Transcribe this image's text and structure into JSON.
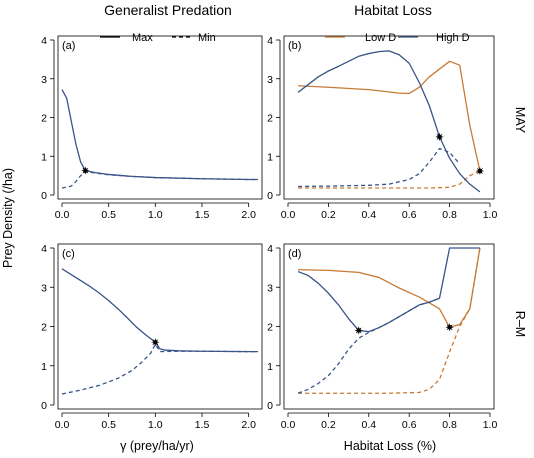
{
  "figure": {
    "column_titles": [
      "Generalist Predation",
      "Habitat Loss"
    ],
    "row_labels": [
      "MAY",
      "R–M"
    ],
    "y_axis_title": "Prey Density (/ha)",
    "x_axis_titles": [
      "γ (prey/ha/yr)",
      "Habitat Loss (%)"
    ]
  },
  "colors": {
    "dark_blue": "#3a5488",
    "orange": "#c87a35",
    "star": "#000000"
  },
  "chart_data": [
    {
      "type": "line",
      "panel": "(a)",
      "xlim": [
        0,
        2.1
      ],
      "ylim": [
        0,
        4
      ],
      "x_ticks": [
        0.0,
        0.5,
        1.0,
        1.5,
        2.0
      ],
      "x_tick_labels": [
        "0.0",
        "0.5",
        "1.0",
        "1.5",
        "2.0"
      ],
      "y_ticks": [
        0,
        1,
        2,
        3,
        4
      ],
      "y_tick_labels": [
        "0",
        "1",
        "2",
        "3",
        "4"
      ],
      "legend": {
        "position": "top-right",
        "entries": [
          {
            "label": "Max",
            "style": "solid"
          },
          {
            "label": "Min",
            "style": "dashed"
          }
        ]
      },
      "series": [
        {
          "style": "solid",
          "color": "#3a5488",
          "points": [
            [
              0,
              2.72
            ],
            [
              0.05,
              2.5
            ],
            [
              0.1,
              1.9
            ],
            [
              0.15,
              1.3
            ],
            [
              0.2,
              0.85
            ],
            [
              0.25,
              0.63
            ],
            [
              0.35,
              0.58
            ],
            [
              0.5,
              0.53
            ],
            [
              0.75,
              0.48
            ],
            [
              1.0,
              0.45
            ],
            [
              1.5,
              0.42
            ],
            [
              2.0,
              0.4
            ],
            [
              2.1,
              0.4
            ]
          ]
        },
        {
          "style": "dashed",
          "color": "#3a5488",
          "points": [
            [
              0,
              0.18
            ],
            [
              0.1,
              0.23
            ],
            [
              0.15,
              0.35
            ],
            [
              0.2,
              0.5
            ],
            [
              0.25,
              0.6
            ],
            [
              0.35,
              0.57
            ],
            [
              0.5,
              0.52
            ],
            [
              0.75,
              0.48
            ],
            [
              1.0,
              0.45
            ],
            [
              1.5,
              0.42
            ],
            [
              2.0,
              0.4
            ],
            [
              2.1,
              0.4
            ]
          ]
        }
      ],
      "markers": [
        {
          "symbol": "star",
          "x": 0.25,
          "y": 0.63
        }
      ]
    },
    {
      "type": "line",
      "panel": "(b)",
      "xlim": [
        0,
        1
      ],
      "ylim": [
        0,
        4
      ],
      "x_ticks": [
        0.0,
        0.2,
        0.4,
        0.6,
        0.8,
        1.0
      ],
      "x_tick_labels": [
        "0.0",
        "0.2",
        "0.4",
        "0.6",
        "0.8",
        "1.0"
      ],
      "y_ticks": [
        0,
        1,
        2,
        3,
        4
      ],
      "y_tick_labels": [
        "0",
        "1",
        "2",
        "3",
        "4"
      ],
      "legend": {
        "position": "top",
        "entries": [
          {
            "label": "Low D",
            "color": "#c87a35"
          },
          {
            "label": "High D",
            "color": "#3a5488"
          }
        ]
      },
      "series": [
        {
          "name": "Low D",
          "style": "solid",
          "color": "#c87a35",
          "points": [
            [
              0.05,
              2.82
            ],
            [
              0.2,
              2.78
            ],
            [
              0.4,
              2.72
            ],
            [
              0.55,
              2.63
            ],
            [
              0.6,
              2.62
            ],
            [
              0.65,
              2.78
            ],
            [
              0.7,
              3.05
            ],
            [
              0.75,
              3.25
            ],
            [
              0.8,
              3.45
            ],
            [
              0.85,
              3.35
            ],
            [
              0.9,
              1.8
            ],
            [
              0.95,
              0.62
            ]
          ]
        },
        {
          "name": "Low D",
          "style": "dashed",
          "color": "#c87a35",
          "points": [
            [
              0.05,
              0.18
            ],
            [
              0.3,
              0.18
            ],
            [
              0.5,
              0.18
            ],
            [
              0.7,
              0.18
            ],
            [
              0.8,
              0.2
            ],
            [
              0.85,
              0.28
            ],
            [
              0.9,
              0.5
            ],
            [
              0.95,
              0.62
            ]
          ]
        },
        {
          "name": "High D",
          "style": "solid",
          "color": "#3a5488",
          "points": [
            [
              0.05,
              2.65
            ],
            [
              0.1,
              2.85
            ],
            [
              0.15,
              3.05
            ],
            [
              0.2,
              3.2
            ],
            [
              0.25,
              3.32
            ],
            [
              0.3,
              3.45
            ],
            [
              0.35,
              3.58
            ],
            [
              0.4,
              3.65
            ],
            [
              0.45,
              3.7
            ],
            [
              0.5,
              3.72
            ],
            [
              0.55,
              3.62
            ],
            [
              0.6,
              3.4
            ],
            [
              0.65,
              2.9
            ],
            [
              0.7,
              2.3
            ],
            [
              0.75,
              1.5
            ],
            [
              0.8,
              0.95
            ],
            [
              0.85,
              0.55
            ],
            [
              0.9,
              0.28
            ],
            [
              0.95,
              0.08
            ]
          ]
        },
        {
          "name": "High D",
          "style": "dashed",
          "color": "#3a5488",
          "points": [
            [
              0.05,
              0.22
            ],
            [
              0.2,
              0.23
            ],
            [
              0.4,
              0.25
            ],
            [
              0.5,
              0.28
            ],
            [
              0.6,
              0.4
            ],
            [
              0.65,
              0.55
            ],
            [
              0.7,
              0.85
            ],
            [
              0.75,
              1.2
            ],
            [
              0.8,
              1.1
            ],
            [
              0.85,
              0.8
            ]
          ]
        }
      ],
      "markers": [
        {
          "symbol": "star",
          "x": 0.75,
          "y": 1.5
        },
        {
          "symbol": "star",
          "x": 0.95,
          "y": 0.62
        }
      ]
    },
    {
      "type": "line",
      "panel": "(c)",
      "xlim": [
        0,
        2.1
      ],
      "ylim": [
        0,
        4
      ],
      "x_ticks": [
        0.0,
        0.5,
        1.0,
        1.5,
        2.0
      ],
      "x_tick_labels": [
        "0.0",
        "0.5",
        "1.0",
        "1.5",
        "2.0"
      ],
      "y_ticks": [
        0,
        1,
        2,
        3,
        4
      ],
      "y_tick_labels": [
        "0",
        "1",
        "2",
        "3",
        "4"
      ],
      "series": [
        {
          "style": "solid",
          "color": "#3a5488",
          "points": [
            [
              0,
              3.47
            ],
            [
              0.1,
              3.32
            ],
            [
              0.2,
              3.17
            ],
            [
              0.3,
              3.02
            ],
            [
              0.4,
              2.85
            ],
            [
              0.5,
              2.66
            ],
            [
              0.6,
              2.45
            ],
            [
              0.7,
              2.22
            ],
            [
              0.8,
              1.98
            ],
            [
              0.9,
              1.78
            ],
            [
              1.0,
              1.6
            ],
            [
              1.05,
              1.43
            ],
            [
              1.1,
              1.4
            ],
            [
              1.25,
              1.38
            ],
            [
              1.5,
              1.37
            ],
            [
              2.0,
              1.36
            ],
            [
              2.1,
              1.36
            ]
          ]
        },
        {
          "style": "dashed",
          "color": "#3a5488",
          "points": [
            [
              0,
              0.28
            ],
            [
              0.2,
              0.38
            ],
            [
              0.4,
              0.5
            ],
            [
              0.6,
              0.68
            ],
            [
              0.75,
              0.88
            ],
            [
              0.85,
              1.08
            ],
            [
              0.95,
              1.32
            ],
            [
              1.0,
              1.55
            ],
            [
              1.05,
              1.36
            ],
            [
              1.25,
              1.37
            ],
            [
              1.5,
              1.37
            ],
            [
              2.0,
              1.36
            ],
            [
              2.1,
              1.36
            ]
          ]
        }
      ],
      "markers": [
        {
          "symbol": "star",
          "x": 1.0,
          "y": 1.6
        }
      ]
    },
    {
      "type": "line",
      "panel": "(d)",
      "xlim": [
        0,
        1
      ],
      "ylim": [
        0,
        4
      ],
      "x_ticks": [
        0.0,
        0.2,
        0.4,
        0.6,
        0.8,
        1.0
      ],
      "x_tick_labels": [
        "0.0",
        "0.2",
        "0.4",
        "0.6",
        "0.8",
        "1.0"
      ],
      "y_ticks": [
        0,
        1,
        2,
        3,
        4
      ],
      "y_tick_labels": [
        "0",
        "1",
        "2",
        "3",
        "4"
      ],
      "series": [
        {
          "name": "Low D",
          "style": "solid",
          "color": "#c87a35",
          "points": [
            [
              0.05,
              3.45
            ],
            [
              0.2,
              3.43
            ],
            [
              0.35,
              3.38
            ],
            [
              0.45,
              3.25
            ],
            [
              0.55,
              2.98
            ],
            [
              0.65,
              2.75
            ],
            [
              0.75,
              2.45
            ],
            [
              0.8,
              1.98
            ],
            [
              0.85,
              2.05
            ],
            [
              0.9,
              2.45
            ],
            [
              0.95,
              4.0
            ]
          ]
        },
        {
          "name": "Low D",
          "style": "dashed",
          "color": "#c87a35",
          "points": [
            [
              0.05,
              0.3
            ],
            [
              0.3,
              0.3
            ],
            [
              0.5,
              0.3
            ],
            [
              0.65,
              0.32
            ],
            [
              0.7,
              0.4
            ],
            [
              0.75,
              0.65
            ],
            [
              0.8,
              1.35
            ],
            [
              0.85,
              2.0
            ],
            [
              0.9,
              2.45
            ],
            [
              0.95,
              4.0
            ]
          ]
        },
        {
          "name": "High D",
          "style": "solid",
          "color": "#3a5488",
          "points": [
            [
              0.05,
              3.4
            ],
            [
              0.1,
              3.3
            ],
            [
              0.15,
              3.1
            ],
            [
              0.2,
              2.85
            ],
            [
              0.25,
              2.55
            ],
            [
              0.3,
              2.2
            ],
            [
              0.35,
              1.9
            ],
            [
              0.4,
              1.87
            ],
            [
              0.45,
              1.97
            ],
            [
              0.5,
              2.1
            ],
            [
              0.55,
              2.25
            ],
            [
              0.6,
              2.4
            ],
            [
              0.65,
              2.55
            ],
            [
              0.7,
              2.62
            ],
            [
              0.75,
              2.72
            ],
            [
              0.8,
              4.0
            ],
            [
              0.95,
              4.0
            ]
          ]
        },
        {
          "name": "High D",
          "style": "dashed",
          "color": "#3a5488",
          "points": [
            [
              0.05,
              0.3
            ],
            [
              0.1,
              0.4
            ],
            [
              0.15,
              0.55
            ],
            [
              0.2,
              0.75
            ],
            [
              0.25,
              1.05
            ],
            [
              0.3,
              1.42
            ],
            [
              0.35,
              1.7
            ],
            [
              0.4,
              1.85
            ],
            [
              0.45,
              1.97
            ],
            [
              0.5,
              2.1
            ],
            [
              0.55,
              2.25
            ],
            [
              0.6,
              2.4
            ],
            [
              0.65,
              2.55
            ],
            [
              0.7,
              2.62
            ],
            [
              0.75,
              2.72
            ]
          ]
        }
      ],
      "markers": [
        {
          "symbol": "star",
          "x": 0.35,
          "y": 1.9
        },
        {
          "symbol": "star",
          "x": 0.8,
          "y": 1.98
        }
      ]
    }
  ]
}
